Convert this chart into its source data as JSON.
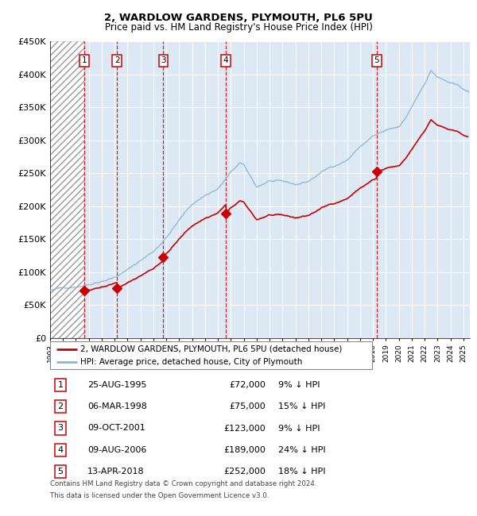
{
  "title1": "2, WARDLOW GARDENS, PLYMOUTH, PL6 5PU",
  "title2": "Price paid vs. HM Land Registry's House Price Index (HPI)",
  "ylim": [
    0,
    450000
  ],
  "yticks": [
    0,
    50000,
    100000,
    150000,
    200000,
    250000,
    300000,
    350000,
    400000,
    450000
  ],
  "ytick_labels": [
    "£0",
    "£50K",
    "£100K",
    "£150K",
    "£200K",
    "£250K",
    "£300K",
    "£350K",
    "£400K",
    "£450K"
  ],
  "xlim_start": 1993.0,
  "xlim_end": 2025.5,
  "sales": [
    {
      "label": "1",
      "year": 1995.646,
      "price": 72000
    },
    {
      "label": "2",
      "year": 1998.18,
      "price": 75000
    },
    {
      "label": "3",
      "year": 2001.77,
      "price": 123000
    },
    {
      "label": "4",
      "year": 2006.606,
      "price": 189000
    },
    {
      "label": "5",
      "year": 2018.28,
      "price": 252000
    }
  ],
  "legend_red": "2, WARDLOW GARDENS, PLYMOUTH, PL6 5PU (detached house)",
  "legend_blue": "HPI: Average price, detached house, City of Plymouth",
  "table": [
    {
      "num": "1",
      "date": "25-AUG-1995",
      "price": "£72,000",
      "hpi": "9% ↓ HPI"
    },
    {
      "num": "2",
      "date": "06-MAR-1998",
      "price": "£75,000",
      "hpi": "15% ↓ HPI"
    },
    {
      "num": "3",
      "date": "09-OCT-2001",
      "price": "£123,000",
      "hpi": "9% ↓ HPI"
    },
    {
      "num": "4",
      "date": "09-AUG-2006",
      "price": "£189,000",
      "hpi": "24% ↓ HPI"
    },
    {
      "num": "5",
      "date": "13-APR-2018",
      "price": "£252,000",
      "hpi": "18% ↓ HPI"
    }
  ],
  "footnote1": "Contains HM Land Registry data © Crown copyright and database right 2024.",
  "footnote2": "This data is licensed under the Open Government Licence v3.0.",
  "hpi_color": "#8ab4d4",
  "red_color": "#cc0000",
  "bg_color": "#dce8f4"
}
